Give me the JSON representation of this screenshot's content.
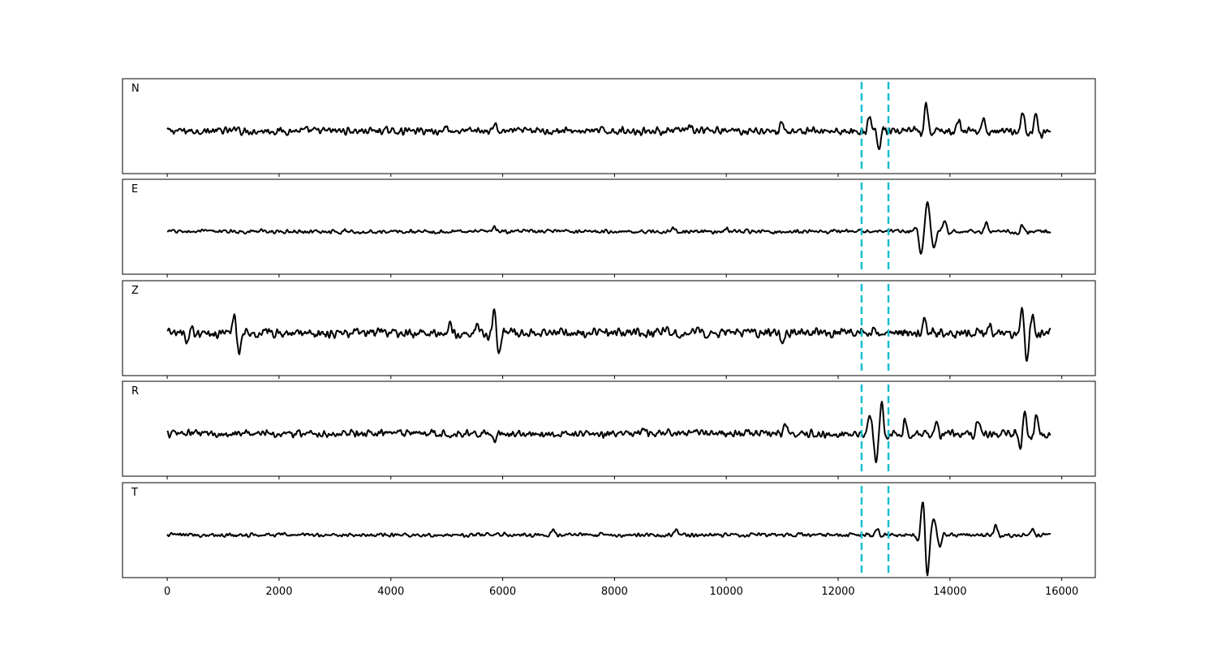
{
  "chart_data": {
    "type": "line",
    "title": "",
    "xlabel": "",
    "ylabel": "",
    "xlim": [
      -800,
      16600
    ],
    "x_ticks": [
      0,
      2000,
      4000,
      6000,
      8000,
      10000,
      12000,
      14000,
      16000
    ],
    "x_tick_labels": [
      "0",
      "2000",
      "4000",
      "6000",
      "8000",
      "10000",
      "12000",
      "14000",
      "16000"
    ],
    "grid": false,
    "legend": "none",
    "sample_range": [
      0,
      15800
    ],
    "vertical_markers": [
      {
        "x": 12420,
        "style": "dashed",
        "color": "#17becf"
      },
      {
        "x": 12900,
        "style": "dashed",
        "color": "#17becf"
      }
    ],
    "line_color": "#000000",
    "panels": [
      {
        "name": "N",
        "noise_level": 0.09,
        "events": [
          {
            "x": 1250,
            "amp": 0.1
          },
          {
            "x": 5000,
            "amp": 0.12
          },
          {
            "x": 5850,
            "amp": 0.16
          },
          {
            "x": 9350,
            "amp": 0.14
          },
          {
            "x": 11000,
            "amp": 0.18
          },
          {
            "x": 12560,
            "amp": 0.3
          },
          {
            "x": 12730,
            "amp": -0.42
          },
          {
            "x": 13580,
            "amp": 0.6
          },
          {
            "x": 14150,
            "amp": 0.22
          },
          {
            "x": 14600,
            "amp": 0.3
          },
          {
            "x": 15300,
            "amp": 0.45
          },
          {
            "x": 15540,
            "amp": 0.4
          }
        ]
      },
      {
        "name": "E",
        "noise_level": 0.05,
        "events": [
          {
            "x": 5850,
            "amp": 0.1
          },
          {
            "x": 9050,
            "amp": 0.1
          },
          {
            "x": 10000,
            "amp": 0.08
          },
          {
            "x": 13480,
            "amp": -0.45
          },
          {
            "x": 13600,
            "amp": 0.6
          },
          {
            "x": 13720,
            "amp": -0.3
          },
          {
            "x": 13900,
            "amp": 0.25
          },
          {
            "x": 14650,
            "amp": 0.18
          },
          {
            "x": 15300,
            "amp": 0.15
          }
        ]
      },
      {
        "name": "Z",
        "noise_level": 0.12,
        "events": [
          {
            "x": 350,
            "amp": -0.25
          },
          {
            "x": 1200,
            "amp": 0.35
          },
          {
            "x": 1280,
            "amp": -0.4
          },
          {
            "x": 5050,
            "amp": 0.2
          },
          {
            "x": 5550,
            "amp": 0.18
          },
          {
            "x": 5850,
            "amp": 0.45
          },
          {
            "x": 5930,
            "amp": -0.4
          },
          {
            "x": 11000,
            "amp": -0.25
          },
          {
            "x": 12650,
            "amp": 0.15
          },
          {
            "x": 13550,
            "amp": 0.3
          },
          {
            "x": 14700,
            "amp": 0.22
          },
          {
            "x": 15300,
            "amp": 0.52
          },
          {
            "x": 15360,
            "amp": -0.6
          },
          {
            "x": 15480,
            "amp": 0.35
          }
        ]
      },
      {
        "name": "R",
        "noise_level": 0.1,
        "events": [
          {
            "x": 5850,
            "amp": -0.18
          },
          {
            "x": 8500,
            "amp": 0.12
          },
          {
            "x": 11050,
            "amp": 0.2
          },
          {
            "x": 12560,
            "amp": 0.3
          },
          {
            "x": 12680,
            "amp": -0.55
          },
          {
            "x": 12780,
            "amp": 0.55
          },
          {
            "x": 13200,
            "amp": 0.35
          },
          {
            "x": 13750,
            "amp": 0.3
          },
          {
            "x": 14500,
            "amp": 0.3
          },
          {
            "x": 15280,
            "amp": -0.45
          },
          {
            "x": 15320,
            "amp": 0.6
          },
          {
            "x": 15550,
            "amp": 0.4
          }
        ]
      },
      {
        "name": "T",
        "noise_level": 0.05,
        "events": [
          {
            "x": 6900,
            "amp": 0.1
          },
          {
            "x": 9100,
            "amp": 0.1
          },
          {
            "x": 12700,
            "amp": 0.12
          },
          {
            "x": 13520,
            "amp": 0.7
          },
          {
            "x": 13590,
            "amp": -0.8
          },
          {
            "x": 13720,
            "amp": 0.3
          },
          {
            "x": 13820,
            "amp": -0.2
          },
          {
            "x": 14820,
            "amp": 0.2
          },
          {
            "x": 15480,
            "amp": 0.12
          }
        ]
      }
    ]
  }
}
